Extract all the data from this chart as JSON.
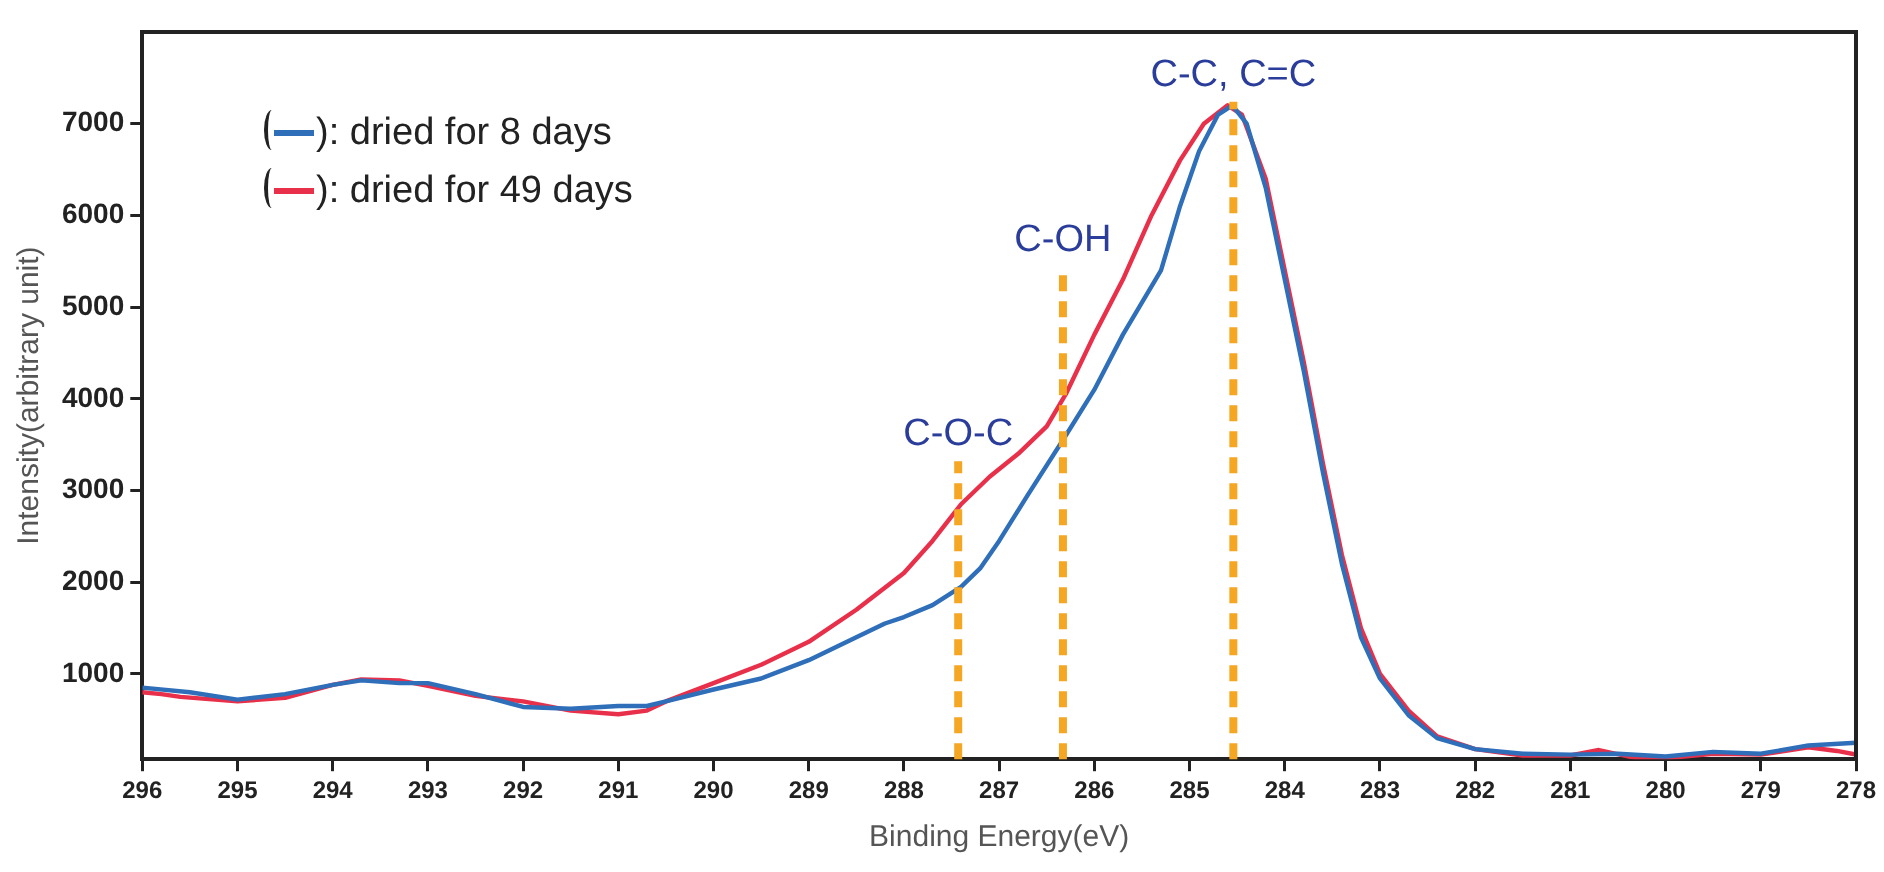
{
  "chart_data": {
    "type": "line",
    "xlabel": "Binding Energy(eV)",
    "ylabel": "Intensity(arbitrary unit)",
    "xlim": [
      296,
      278
    ],
    "xticks": [
      296,
      295,
      294,
      293,
      292,
      291,
      290,
      289,
      288,
      287,
      286,
      285,
      284,
      283,
      282,
      281,
      280,
      279,
      278
    ],
    "ylim": [
      70,
      8000
    ],
    "yticks": [
      1000,
      2000,
      3000,
      4000,
      5000,
      6000,
      7000
    ],
    "grid": false,
    "legend": "top left",
    "marker": "none",
    "line_style": "solid",
    "series": [
      {
        "name": "): dried for 8 days",
        "color": "#2f6fba",
        "x": [
          296,
          295.5,
          295,
          294.5,
          294,
          293.7,
          293.3,
          293,
          292.5,
          292,
          291.5,
          291,
          290.7,
          290.5,
          290,
          289.5,
          289,
          288.5,
          288.2,
          288,
          287.7,
          287.4,
          287.2,
          287,
          286.7,
          286.3,
          286,
          285.7,
          285.3,
          285.1,
          284.9,
          284.7,
          284.55,
          284.4,
          284.2,
          284,
          283.8,
          283.6,
          283.4,
          283.2,
          283,
          282.7,
          282.4,
          282,
          281.5,
          281,
          280.5,
          280,
          279.5,
          279,
          278.5,
          278
        ],
        "values": [
          850,
          800,
          720,
          780,
          880,
          930,
          900,
          900,
          780,
          640,
          620,
          650,
          650,
          700,
          830,
          950,
          1150,
          1400,
          1550,
          1620,
          1750,
          1950,
          2150,
          2450,
          2950,
          3600,
          4100,
          4700,
          5400,
          6100,
          6700,
          7100,
          7200,
          7000,
          6300,
          5300,
          4300,
          3200,
          2200,
          1400,
          950,
          550,
          300,
          180,
          130,
          120,
          130,
          100,
          150,
          130,
          220,
          250
        ]
      },
      {
        "name": "): dried for 49 days",
        "color": "#e8304a",
        "x": [
          296,
          295.8,
          295.6,
          295,
          294.5,
          294,
          293.7,
          293.3,
          293,
          292.5,
          292,
          291.5,
          291,
          290.7,
          290.5,
          290,
          289.5,
          289,
          288.5,
          288,
          287.7,
          287.4,
          287.1,
          286.8,
          286.5,
          286.3,
          286,
          285.7,
          285.4,
          285.1,
          284.85,
          284.6,
          284.45,
          284.2,
          284,
          283.8,
          283.6,
          283.4,
          283.2,
          283,
          282.7,
          282.4,
          282,
          281.5,
          281,
          280.7,
          280.3,
          280,
          279.5,
          279,
          278.5,
          278.2,
          278
        ],
        "values": [
          800,
          780,
          750,
          700,
          740,
          880,
          940,
          930,
          870,
          760,
          700,
          600,
          560,
          600,
          700,
          900,
          1100,
          1350,
          1700,
          2100,
          2450,
          2850,
          3150,
          3400,
          3700,
          4050,
          4700,
          5300,
          6000,
          6600,
          7000,
          7200,
          7100,
          6400,
          5400,
          4400,
          3300,
          2300,
          1500,
          1000,
          600,
          320,
          180,
          110,
          110,
          170,
          80,
          80,
          130,
          120,
          200,
          160,
          120
        ]
      }
    ],
    "ref_lines": [
      {
        "axis": "x",
        "value": 287.43,
        "color": "#f5a623",
        "line_style": "dashed"
      },
      {
        "axis": "x",
        "value": 286.33,
        "color": "#f5a623",
        "line_style": "dashed"
      },
      {
        "axis": "x",
        "value": 284.54,
        "color": "#f5a623",
        "line_style": "dashed"
      }
    ],
    "annotations": [
      {
        "text": "C-O-C",
        "x": 287.43,
        "y": 3320
      },
      {
        "text": "C-OH",
        "x": 286.33,
        "y": 5440
      },
      {
        "text": "C-C, C=C",
        "x": 284.54,
        "y": 7240
      }
    ]
  }
}
